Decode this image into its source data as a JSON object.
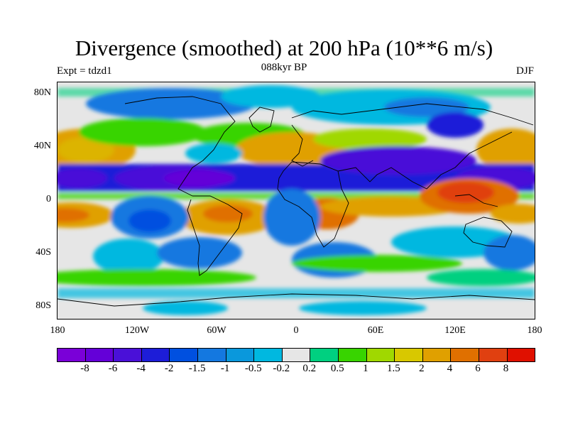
{
  "title": "Divergence (smoothed) at 200 hPa (10**6 m/s)",
  "subtitle_left": "Expt = tdzd1",
  "subtitle_center": "088kyr BP",
  "subtitle_right": "DJF",
  "lat_labels": [
    "80N",
    "40N",
    "0",
    "40S",
    "80S"
  ],
  "lon_labels": [
    "180",
    "120W",
    "60W",
    "0",
    "60E",
    "120E",
    "180"
  ],
  "colorbar": {
    "colors": [
      "#7a00d8",
      "#6400d8",
      "#4a10d8",
      "#1d1dd8",
      "#0050e0",
      "#1478e0",
      "#0a98dc",
      "#00b8e0",
      "#e6e6e6",
      "#00d080",
      "#38d400",
      "#a0d800",
      "#d8c800",
      "#e0a000",
      "#e07000",
      "#e04010",
      "#e01000"
    ],
    "labels": [
      "-8",
      "-6",
      "-4",
      "-2",
      "-1.5",
      "-1",
      "-0.5",
      "-0.2",
      "0.2",
      "0.5",
      "1",
      "1.5",
      "2",
      "4",
      "6",
      "8"
    ]
  }
}
